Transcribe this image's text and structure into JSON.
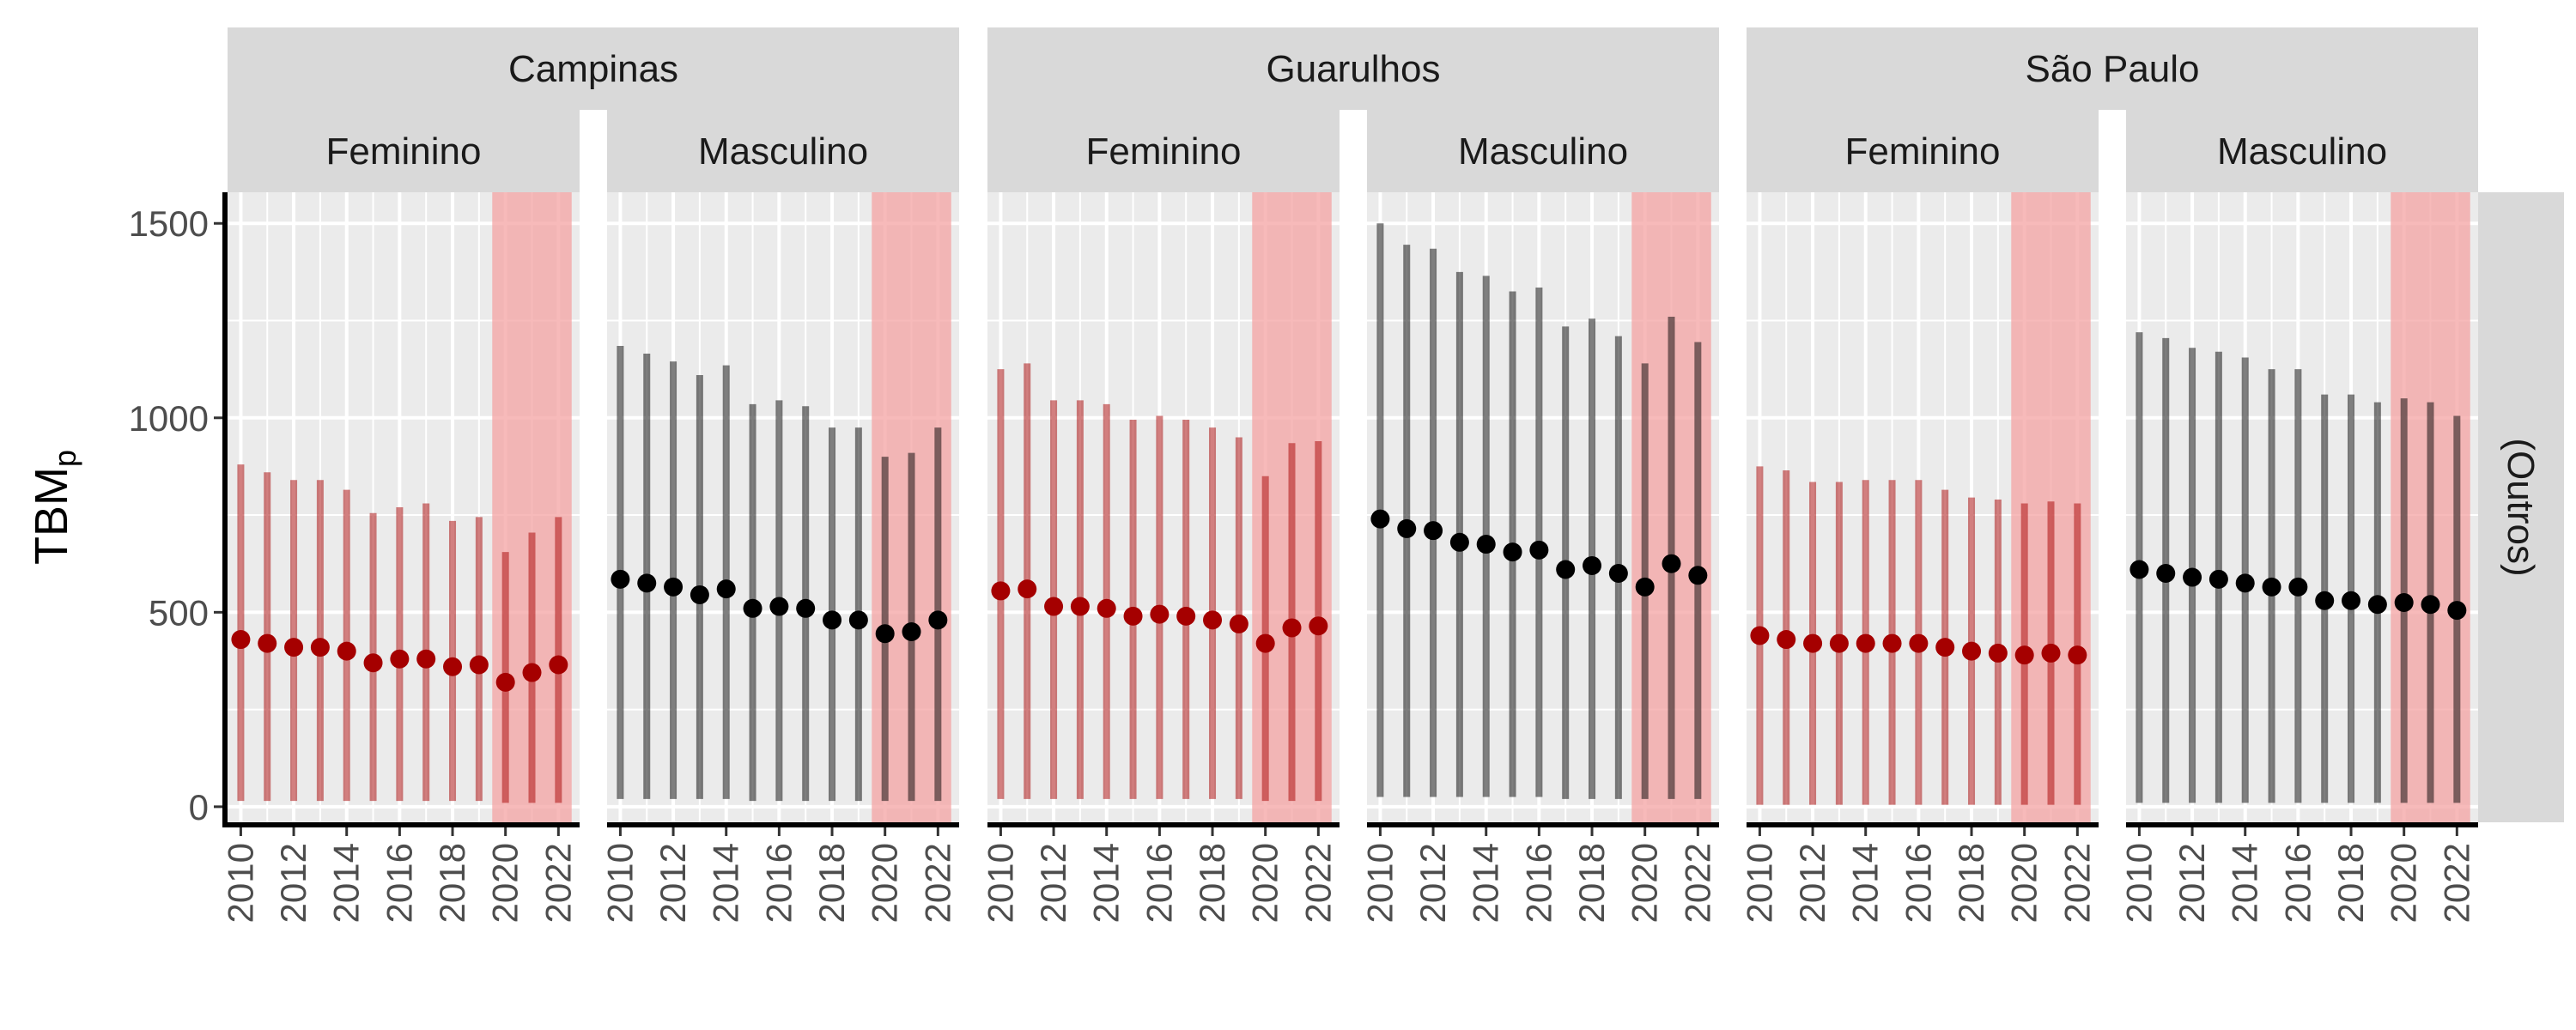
{
  "chart_data": {
    "type": "scatter",
    "description_style": "faceted point-range plot",
    "ylabel": "TBM",
    "ylabel_subscript": "p",
    "row_facet_label": "(Outros)",
    "ylim": [
      -40,
      1580
    ],
    "yticks": [
      0,
      500,
      1000,
      1500
    ],
    "xticks": [
      2010,
      2012,
      2014,
      2016,
      2018,
      2020,
      2022
    ],
    "xlim": [
      2009.5,
      2022.8
    ],
    "highlight_range": [
      2019.5,
      2022.5
    ],
    "highlight_color": "#f4a3a3",
    "colors": {
      "Feminino": "#a50000",
      "Masculino": "#000000"
    },
    "years": [
      2010,
      2011,
      2012,
      2013,
      2014,
      2015,
      2016,
      2017,
      2018,
      2019,
      2020,
      2021,
      2022
    ],
    "cities": [
      {
        "name": "Campinas",
        "panels": [
          {
            "sex": "Feminino",
            "values": [
              430,
              420,
              410,
              410,
              400,
              370,
              380,
              380,
              360,
              365,
              320,
              345,
              365
            ],
            "lower": [
              15,
              15,
              15,
              15,
              15,
              15,
              15,
              15,
              15,
              15,
              10,
              10,
              10
            ],
            "upper": [
              880,
              860,
              840,
              840,
              815,
              755,
              770,
              780,
              735,
              745,
              655,
              705,
              745
            ]
          },
          {
            "sex": "Masculino",
            "values": [
              585,
              575,
              565,
              545,
              560,
              510,
              515,
              510,
              480,
              480,
              445,
              450,
              480
            ],
            "lower": [
              20,
              20,
              20,
              20,
              20,
              15,
              15,
              15,
              15,
              15,
              15,
              15,
              15
            ],
            "upper": [
              1185,
              1165,
              1145,
              1110,
              1135,
              1035,
              1045,
              1030,
              975,
              975,
              900,
              910,
              975
            ]
          }
        ]
      },
      {
        "name": "Guarulhos",
        "panels": [
          {
            "sex": "Feminino",
            "values": [
              555,
              560,
              515,
              515,
              510,
              490,
              495,
              490,
              480,
              470,
              420,
              460,
              465
            ],
            "lower": [
              20,
              20,
              20,
              20,
              20,
              20,
              20,
              20,
              20,
              20,
              15,
              15,
              15
            ],
            "upper": [
              1125,
              1140,
              1045,
              1045,
              1035,
              995,
              1005,
              995,
              975,
              950,
              850,
              935,
              940
            ]
          },
          {
            "sex": "Masculino",
            "values": [
              740,
              715,
              710,
              680,
              675,
              655,
              660,
              610,
              620,
              600,
              565,
              625,
              595
            ],
            "lower": [
              25,
              25,
              25,
              25,
              25,
              25,
              25,
              20,
              20,
              20,
              20,
              20,
              20
            ],
            "upper": [
              1500,
              1445,
              1435,
              1375,
              1365,
              1325,
              1335,
              1235,
              1255,
              1210,
              1140,
              1260,
              1195
            ]
          }
        ]
      },
      {
        "name": "São Paulo",
        "panels": [
          {
            "sex": "Feminino",
            "values": [
              440,
              430,
              420,
              420,
              420,
              420,
              420,
              410,
              400,
              395,
              390,
              395,
              390
            ],
            "lower": [
              5,
              5,
              5,
              5,
              5,
              5,
              5,
              5,
              5,
              5,
              5,
              5,
              5
            ],
            "upper": [
              875,
              865,
              835,
              835,
              840,
              840,
              840,
              815,
              795,
              790,
              780,
              785,
              780
            ]
          },
          {
            "sex": "Masculino",
            "values": [
              610,
              600,
              590,
              585,
              575,
              565,
              565,
              530,
              530,
              520,
              525,
              520,
              505
            ],
            "lower": [
              10,
              10,
              10,
              10,
              10,
              10,
              10,
              10,
              10,
              10,
              10,
              10,
              10
            ],
            "upper": [
              1220,
              1205,
              1180,
              1170,
              1155,
              1125,
              1125,
              1060,
              1060,
              1040,
              1050,
              1040,
              1005
            ]
          }
        ]
      }
    ]
  }
}
